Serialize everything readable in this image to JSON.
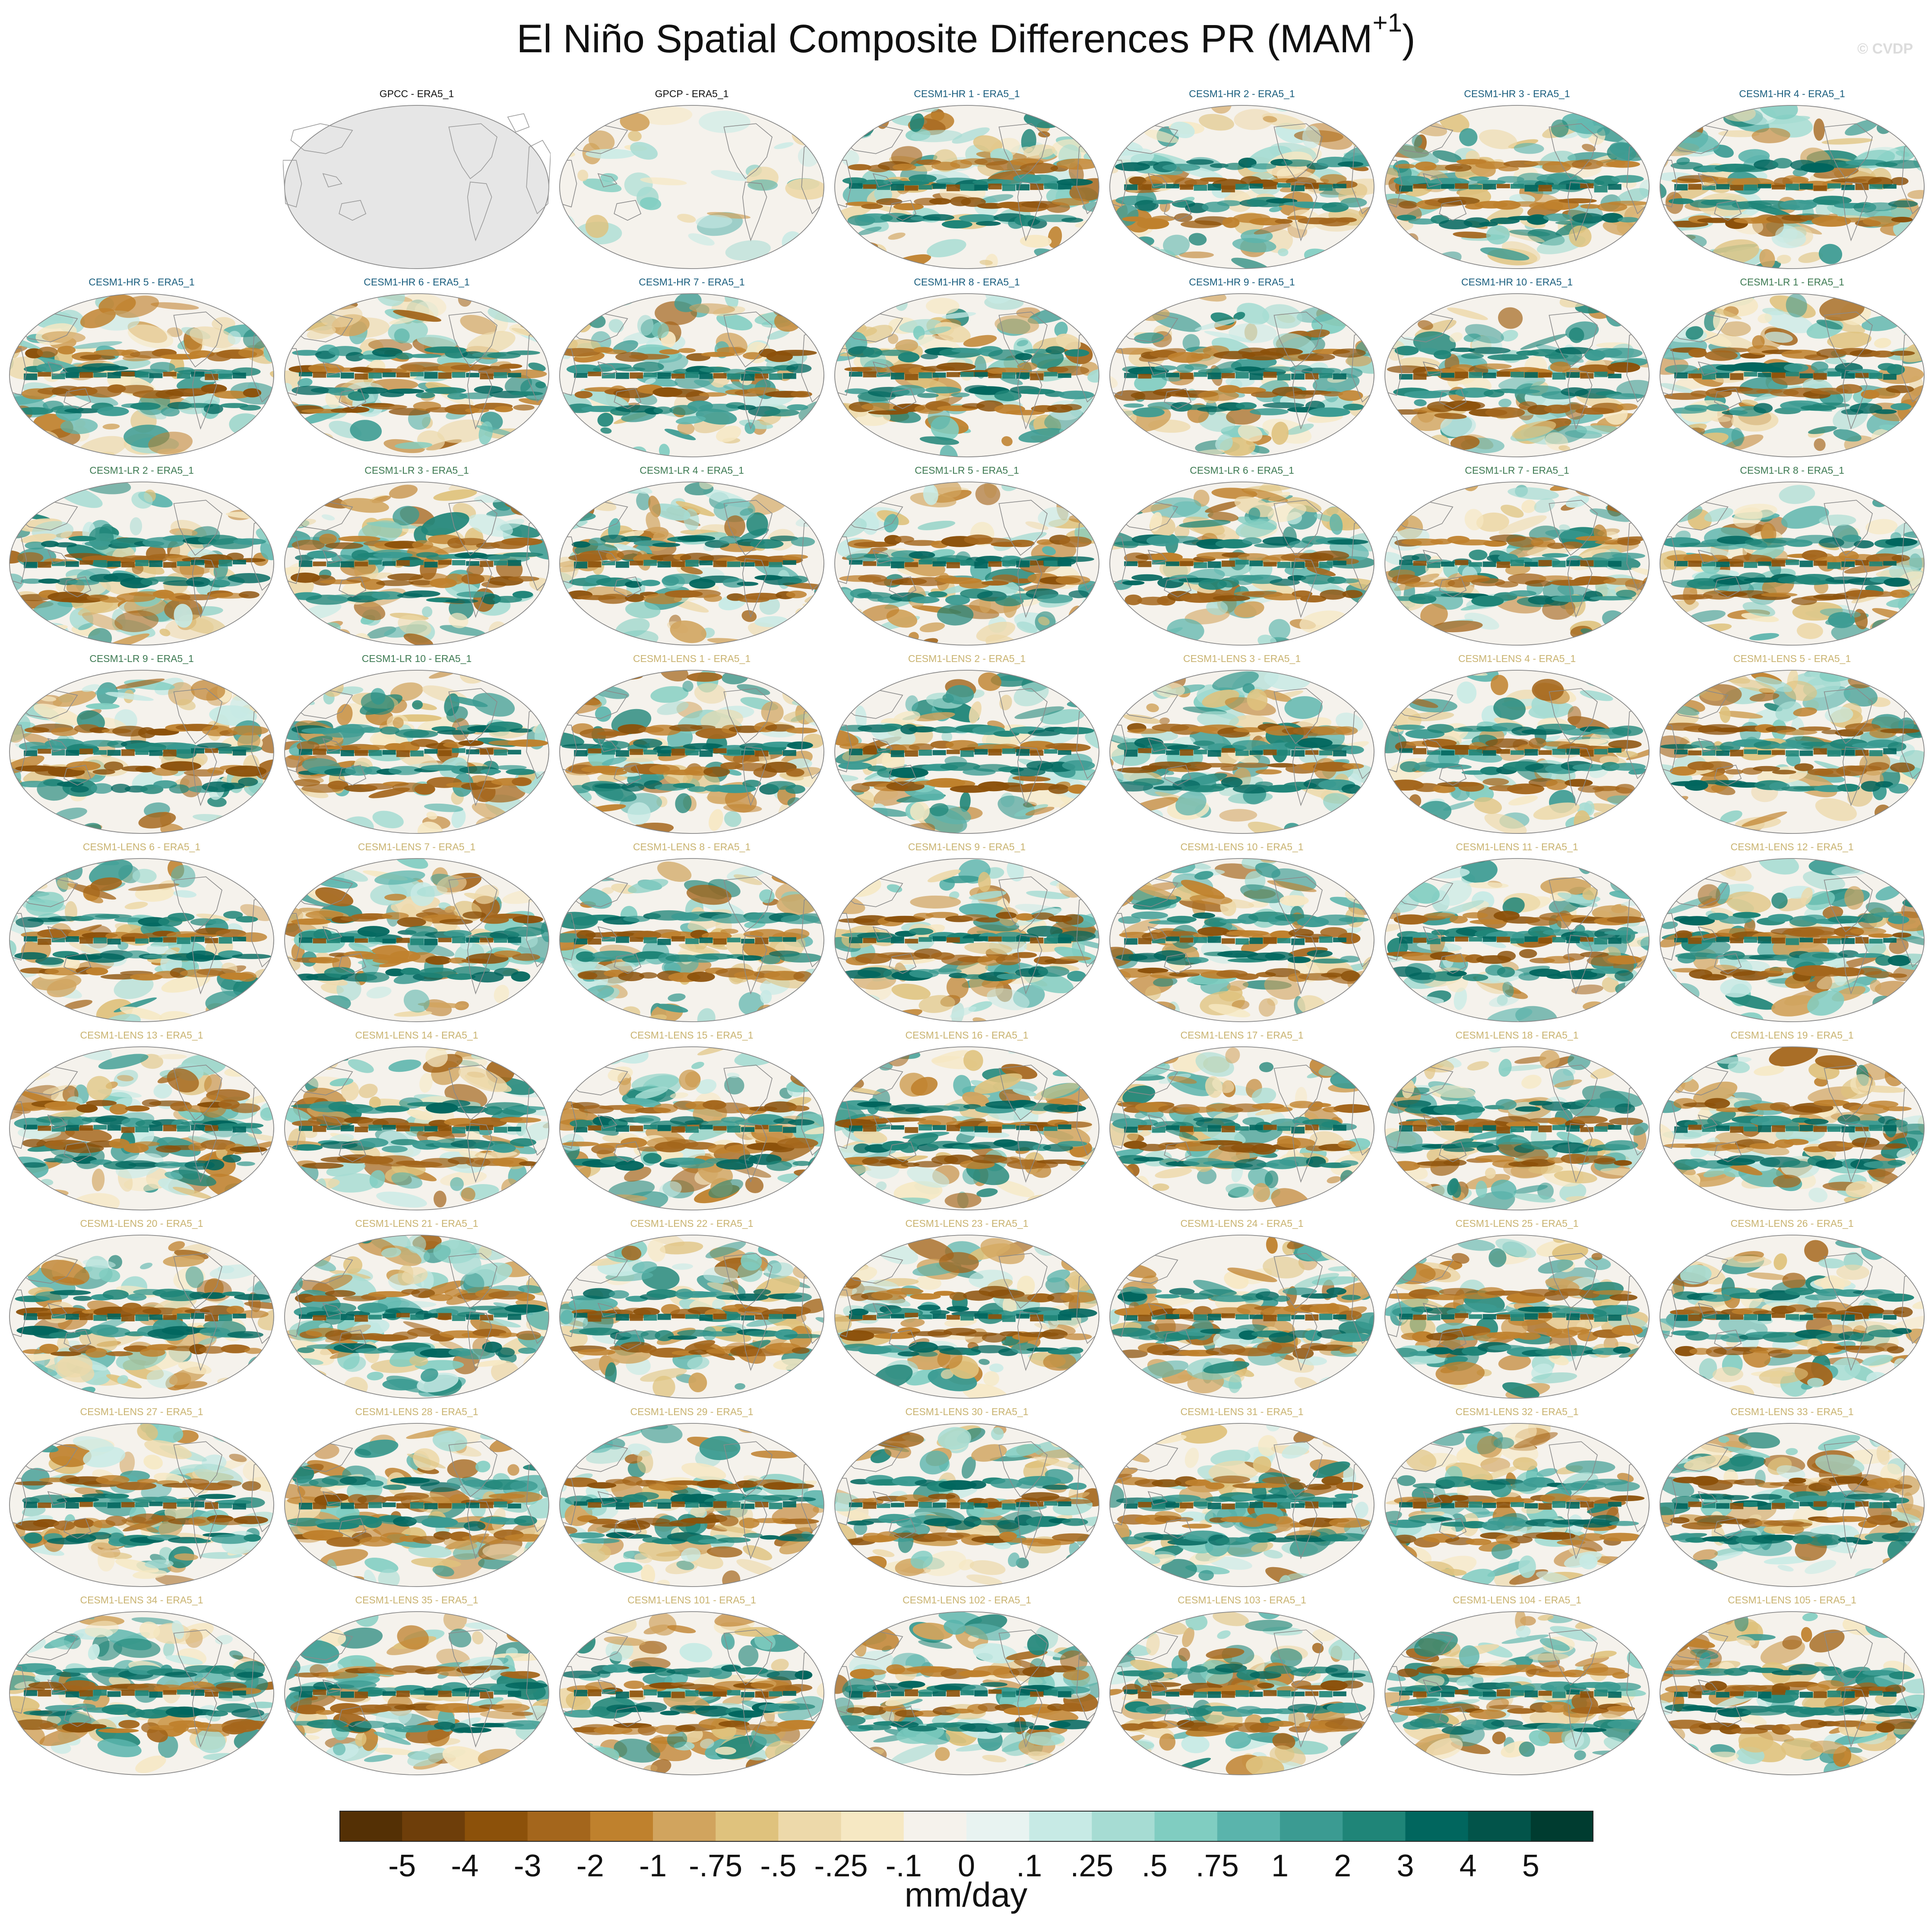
{
  "figure": {
    "title": "El Niño Spatial Composite Differences PR (MAM",
    "title_sup": "+1",
    "title_close": ")",
    "watermark": "© CVDP",
    "units": "mm/day"
  },
  "groups": {
    "obs": {
      "color": "#111111"
    },
    "hr": {
      "color": "#1a5e7e"
    },
    "lr": {
      "color": "#3d7a52"
    },
    "lens": {
      "color": "#c9b370"
    }
  },
  "panels": [
    {
      "label": "GPCC - ERA5_1",
      "group": "obs",
      "blank": true
    },
    {
      "label": "GPCP - ERA5_1",
      "group": "obs",
      "intensity": 0.35
    },
    {
      "label": "CESM1-HR 1 - ERA5_1",
      "group": "hr",
      "intensity": 1.0
    },
    {
      "label": "CESM1-HR 2 - ERA5_1",
      "group": "hr",
      "intensity": 1.0
    },
    {
      "label": "CESM1-HR 3 - ERA5_1",
      "group": "hr",
      "intensity": 1.0
    },
    {
      "label": "CESM1-HR 4 - ERA5_1",
      "group": "hr",
      "intensity": 1.0
    },
    {
      "label": "CESM1-HR 5 - ERA5_1",
      "group": "hr",
      "intensity": 1.0
    },
    {
      "label": "CESM1-HR 6 - ERA5_1",
      "group": "hr",
      "intensity": 1.0
    },
    {
      "label": "CESM1-HR 7 - ERA5_1",
      "group": "hr",
      "intensity": 1.0
    },
    {
      "label": "CESM1-HR 8 - ERA5_1",
      "group": "hr",
      "intensity": 1.0
    },
    {
      "label": "CESM1-HR 9 - ERA5_1",
      "group": "hr",
      "intensity": 1.0
    },
    {
      "label": "CESM1-HR 10 - ERA5_1",
      "group": "hr",
      "intensity": 1.0
    },
    {
      "label": "CESM1-LR 1 - ERA5_1",
      "group": "lr",
      "intensity": 1.0
    },
    {
      "label": "CESM1-LR 2 - ERA5_1",
      "group": "lr",
      "intensity": 1.0
    },
    {
      "label": "CESM1-LR 3 - ERA5_1",
      "group": "lr",
      "intensity": 1.0
    },
    {
      "label": "CESM1-LR 4 - ERA5_1",
      "group": "lr",
      "intensity": 1.0
    },
    {
      "label": "CESM1-LR 5 - ERA5_1",
      "group": "lr",
      "intensity": 1.0
    },
    {
      "label": "CESM1-LR 6 - ERA5_1",
      "group": "lr",
      "intensity": 1.0
    },
    {
      "label": "CESM1-LR 7 - ERA5_1",
      "group": "lr",
      "intensity": 1.0
    },
    {
      "label": "CESM1-LR 8 - ERA5_1",
      "group": "lr",
      "intensity": 1.0
    },
    {
      "label": "CESM1-LR 9 - ERA5_1",
      "group": "lr",
      "intensity": 1.0
    },
    {
      "label": "CESM1-LR 10 - ERA5_1",
      "group": "lr",
      "intensity": 1.0
    },
    {
      "label": "CESM1-LENS 1 - ERA5_1",
      "group": "lens",
      "intensity": 1.0
    },
    {
      "label": "CESM1-LENS 2 - ERA5_1",
      "group": "lens",
      "intensity": 1.0
    },
    {
      "label": "CESM1-LENS 3 - ERA5_1",
      "group": "lens",
      "intensity": 1.0
    },
    {
      "label": "CESM1-LENS 4 - ERA5_1",
      "group": "lens",
      "intensity": 1.0
    },
    {
      "label": "CESM1-LENS 5 - ERA5_1",
      "group": "lens",
      "intensity": 1.0
    },
    {
      "label": "CESM1-LENS 6 - ERA5_1",
      "group": "lens",
      "intensity": 1.0
    },
    {
      "label": "CESM1-LENS 7 - ERA5_1",
      "group": "lens",
      "intensity": 1.0
    },
    {
      "label": "CESM1-LENS 8 - ERA5_1",
      "group": "lens",
      "intensity": 1.0
    },
    {
      "label": "CESM1-LENS 9 - ERA5_1",
      "group": "lens",
      "intensity": 1.0
    },
    {
      "label": "CESM1-LENS 10 - ERA5_1",
      "group": "lens",
      "intensity": 1.0
    },
    {
      "label": "CESM1-LENS 11 - ERA5_1",
      "group": "lens",
      "intensity": 1.0
    },
    {
      "label": "CESM1-LENS 12 - ERA5_1",
      "group": "lens",
      "intensity": 1.0
    },
    {
      "label": "CESM1-LENS 13 - ERA5_1",
      "group": "lens",
      "intensity": 1.0
    },
    {
      "label": "CESM1-LENS 14 - ERA5_1",
      "group": "lens",
      "intensity": 1.0
    },
    {
      "label": "CESM1-LENS 15 - ERA5_1",
      "group": "lens",
      "intensity": 1.0
    },
    {
      "label": "CESM1-LENS 16 - ERA5_1",
      "group": "lens",
      "intensity": 1.0
    },
    {
      "label": "CESM1-LENS 17 - ERA5_1",
      "group": "lens",
      "intensity": 1.0
    },
    {
      "label": "CESM1-LENS 18 - ERA5_1",
      "group": "lens",
      "intensity": 1.0
    },
    {
      "label": "CESM1-LENS 19 - ERA5_1",
      "group": "lens",
      "intensity": 1.0
    },
    {
      "label": "CESM1-LENS 20 - ERA5_1",
      "group": "lens",
      "intensity": 1.0
    },
    {
      "label": "CESM1-LENS 21 - ERA5_1",
      "group": "lens",
      "intensity": 1.0
    },
    {
      "label": "CESM1-LENS 22 - ERA5_1",
      "group": "lens",
      "intensity": 1.0
    },
    {
      "label": "CESM1-LENS 23 - ERA5_1",
      "group": "lens",
      "intensity": 1.0
    },
    {
      "label": "CESM1-LENS 24 - ERA5_1",
      "group": "lens",
      "intensity": 1.0
    },
    {
      "label": "CESM1-LENS 25 - ERA5_1",
      "group": "lens",
      "intensity": 1.0
    },
    {
      "label": "CESM1-LENS 26 - ERA5_1",
      "group": "lens",
      "intensity": 1.0
    },
    {
      "label": "CESM1-LENS 27 - ERA5_1",
      "group": "lens",
      "intensity": 1.0
    },
    {
      "label": "CESM1-LENS 28 - ERA5_1",
      "group": "lens",
      "intensity": 1.0
    },
    {
      "label": "CESM1-LENS 29 - ERA5_1",
      "group": "lens",
      "intensity": 1.0
    },
    {
      "label": "CESM1-LENS 30 - ERA5_1",
      "group": "lens",
      "intensity": 1.0
    },
    {
      "label": "CESM1-LENS 31 - ERA5_1",
      "group": "lens",
      "intensity": 1.0
    },
    {
      "label": "CESM1-LENS 32 - ERA5_1",
      "group": "lens",
      "intensity": 1.0
    },
    {
      "label": "CESM1-LENS 33 - ERA5_1",
      "group": "lens",
      "intensity": 1.0
    },
    {
      "label": "CESM1-LENS 34 - ERA5_1",
      "group": "lens",
      "intensity": 1.0
    },
    {
      "label": "CESM1-LENS 35 - ERA5_1",
      "group": "lens",
      "intensity": 1.0
    },
    {
      "label": "CESM1-LENS 101 - ERA5_1",
      "group": "lens",
      "intensity": 1.0
    },
    {
      "label": "CESM1-LENS 102 - ERA5_1",
      "group": "lens",
      "intensity": 1.0
    },
    {
      "label": "CESM1-LENS 103 - ERA5_1",
      "group": "lens",
      "intensity": 1.0
    },
    {
      "label": "CESM1-LENS 104 - ERA5_1",
      "group": "lens",
      "intensity": 1.0
    },
    {
      "label": "CESM1-LENS 105 - ERA5_1",
      "group": "lens",
      "intensity": 1.0
    }
  ],
  "colorbar": {
    "colors": [
      "#543005",
      "#6e3e0a",
      "#8c510a",
      "#a4661c",
      "#bf812d",
      "#d1a45e",
      "#dfc27d",
      "#edd9aa",
      "#f6e8c3",
      "#f5f2ec",
      "#e8f3f1",
      "#c7eae5",
      "#a6dcd3",
      "#80cdc1",
      "#5ab4ac",
      "#3b9b92",
      "#1f8578",
      "#01665e",
      "#02544a",
      "#003c30"
    ],
    "ticks": [
      "-5",
      "-4",
      "-3",
      "-2",
      "-1",
      "-.75",
      "-.5",
      "-.25",
      "-.1",
      "0",
      ".1",
      ".25",
      ".5",
      ".75",
      "1",
      "2",
      "3",
      "4",
      "5"
    ]
  }
}
